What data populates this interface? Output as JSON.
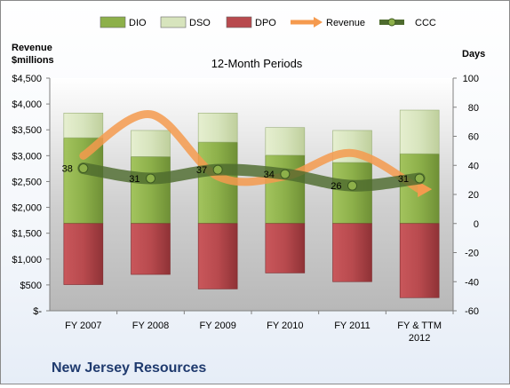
{
  "chart_data": {
    "type": "bar",
    "title": "12-Month Periods",
    "company": "New Jersey Resources",
    "left_axis_title": [
      "Revenue",
      "$millions"
    ],
    "right_axis_title": "Days",
    "categories": [
      "FY 2007",
      "FY 2008",
      "FY 2009",
      "FY 2010",
      "FY 2011",
      "FY & TTM 2012"
    ],
    "left_axis": {
      "ylim": [
        0,
        4500
      ],
      "ticks": [
        "$-",
        "$500",
        "$1,000",
        "$1,500",
        "$2,000",
        "$2,500",
        "$3,000",
        "$3,500",
        "$4,000",
        "$4,500"
      ]
    },
    "right_axis": {
      "ylim": [
        -60,
        100
      ],
      "ticks": [
        "-60",
        "-40",
        "-20",
        "0",
        "20",
        "40",
        "60",
        "80",
        "100"
      ]
    },
    "legend": [
      {
        "name": "DIO",
        "color": "#8db04a"
      },
      {
        "name": "DSO",
        "color": "#d7e4bd"
      },
      {
        "name": "DPO",
        "color": "#b84a4e"
      },
      {
        "name": "Revenue",
        "color": "#f59a4e"
      },
      {
        "name": "CCC",
        "color": "#4e6b2e"
      }
    ],
    "series": [
      {
        "name": "DIO",
        "values": [
          59,
          46,
          56,
          47,
          42,
          48
        ],
        "axis": "right"
      },
      {
        "name": "DSO",
        "values": [
          17,
          18,
          20,
          19,
          22,
          30
        ],
        "axis": "right"
      },
      {
        "name": "DPO",
        "values": [
          -42,
          -35,
          -45,
          -34,
          -40,
          -51
        ],
        "axis": "right"
      },
      {
        "name": "Revenue",
        "values": [
          3000,
          3800,
          2600,
          2600,
          3050,
          2350
        ],
        "axis": "left"
      },
      {
        "name": "CCC",
        "values": [
          38,
          31,
          37,
          34,
          26,
          31
        ],
        "axis": "right"
      }
    ],
    "data_labels": [
      "38",
      "31",
      "37",
      "34",
      "26",
      "31"
    ],
    "grid": false,
    "legend_position": "top"
  }
}
